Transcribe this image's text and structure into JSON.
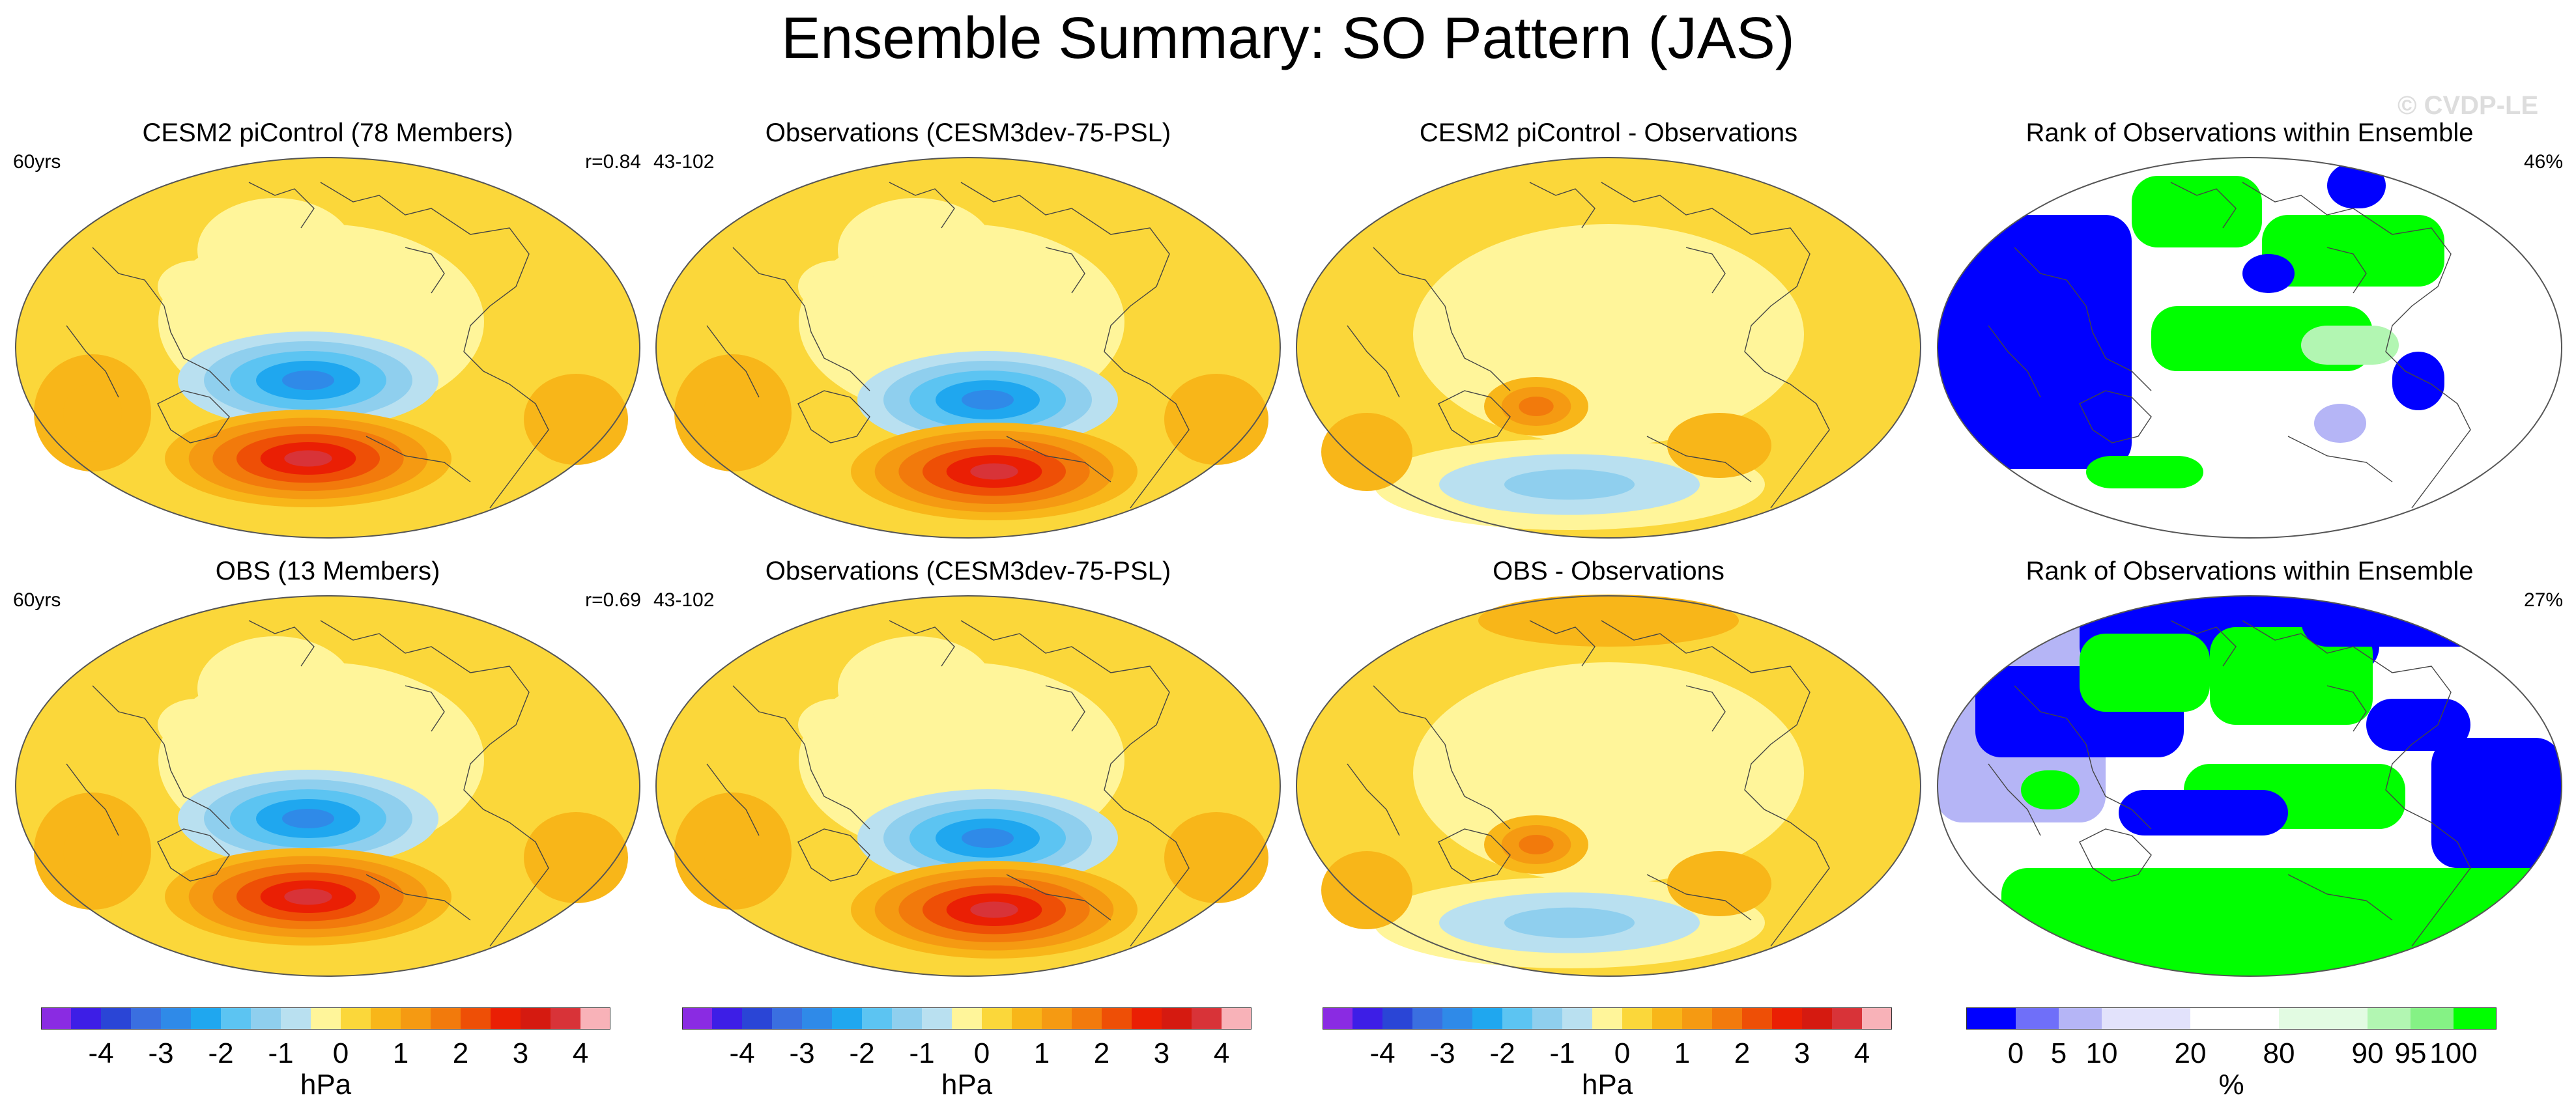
{
  "figure": {
    "title": "Ensemble Summary: SO Pattern (JAS)",
    "watermark": "© CVDP-LE"
  },
  "panels": [
    {
      "id": "p1",
      "title": "CESM2 piControl (78 Members)",
      "left_label": "60yrs",
      "right_label": "r=0.84",
      "kind": "pattern"
    },
    {
      "id": "p2",
      "title": "Observations (CESM3dev-75-PSL)",
      "left_label": "43-102",
      "right_label": "",
      "kind": "pattern"
    },
    {
      "id": "p3",
      "title": "CESM2 piControl - Observations",
      "left_label": "",
      "right_label": "",
      "kind": "difference"
    },
    {
      "id": "p4",
      "title": "Rank of Observations within Ensemble",
      "left_label": "",
      "right_label": "46%",
      "kind": "rank"
    },
    {
      "id": "p5",
      "title": "OBS (13 Members)",
      "left_label": "60yrs",
      "right_label": "r=0.69",
      "kind": "pattern"
    },
    {
      "id": "p6",
      "title": "Observations (CESM3dev-75-PSL)",
      "left_label": "43-102",
      "right_label": "",
      "kind": "pattern"
    },
    {
      "id": "p7",
      "title": "OBS - Observations",
      "left_label": "",
      "right_label": "",
      "kind": "difference"
    },
    {
      "id": "p8",
      "title": "Rank of Observations within Ensemble",
      "left_label": "",
      "right_label": "27%",
      "kind": "rank"
    }
  ],
  "chart_data": {
    "type": "heatmap",
    "title": "Ensemble Summary: SO Pattern (JAS)",
    "projection": "Robinson (Pacific-centered)",
    "colorbars": [
      {
        "id": "hpa",
        "label": "hPa",
        "levels": [
          -4.5,
          -4,
          -3.5,
          -3,
          -2.5,
          -2,
          -1.5,
          -1,
          -0.5,
          0,
          0.5,
          1,
          1.5,
          2,
          2.5,
          3,
          3.5,
          4,
          4.5
        ],
        "tick_labels": [
          "-4",
          "-3",
          "-2",
          "-1",
          "0",
          "1",
          "2",
          "3",
          "4"
        ],
        "colors": [
          "#8a2be2",
          "#3d1ee6",
          "#2a45d6",
          "#3a6fe0",
          "#2f8ae8",
          "#1fa7ef",
          "#5cc4f2",
          "#8fcfee",
          "#b9e0f0",
          "#fff59a",
          "#fbd73a",
          "#f8b619",
          "#f59a12",
          "#f27a0c",
          "#ee4f06",
          "#ea1f04",
          "#d51a10",
          "#d83338",
          "#f8b2b8"
        ]
      },
      {
        "id": "rank",
        "label": "%",
        "levels": [
          0,
          5,
          10,
          20,
          80,
          90,
          95,
          100
        ],
        "tick_labels": [
          "0",
          "5",
          "10",
          "20",
          "80",
          "90",
          "95",
          "100"
        ],
        "colors": [
          "#0000ff",
          "#6f6ff9",
          "#b5b5f6",
          "#e2e2fb",
          "#ffffff",
          "#e2fbe2",
          "#b2f6b2",
          "#85f285",
          "#00ff00"
        ]
      }
    ],
    "fields": {
      "pattern_features": "Dipole over South Pacific: low (~-3 hPa) near 45S,150W; high (~+3 hPa) near 65S,140W; weak positive Indian Ocean/Atlantic",
      "difference_features": "Weak differences within ±1.5 hPa; positive off Australia, negative Southern Ocean",
      "rank_features": "Blue (low rank) Indian Ocean and S. Pacific; green (high rank) Pacific & Atlantic"
    }
  }
}
